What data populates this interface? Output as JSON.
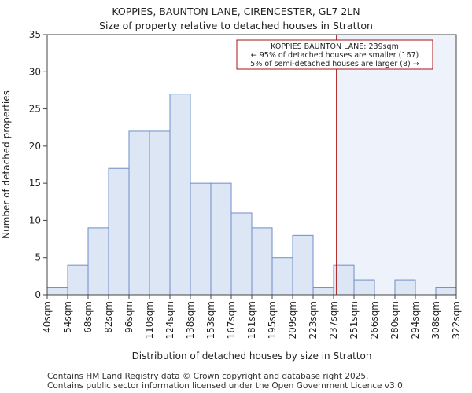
{
  "title_line1": "KOPPIES, BAUNTON LANE, CIRENCESTER, GL7 2LN",
  "title_line2": "Size of property relative to detached houses in Stratton",
  "footer_line1": "Contains HM Land Registry data © Crown copyright and database right 2025.",
  "footer_line2": "Contains public sector information licensed under the Open Government Licence v3.0.",
  "colors": {
    "bar_fill": "#dce6f5",
    "bar_stroke": "#6e8fc7",
    "highlight_fill": "#eef2fb",
    "marker": "#aa1111"
  },
  "chart_data": {
    "type": "bar",
    "title": "Size of property relative to detached houses in Stratton",
    "xlabel": "Distribution of detached houses by size in Stratton",
    "ylabel": "Number of detached properties",
    "ylim": [
      0,
      35
    ],
    "yticks": [
      0,
      5,
      10,
      15,
      20,
      25,
      30,
      35
    ],
    "grid": false,
    "bin_edges": [
      "40sqm",
      "54sqm",
      "68sqm",
      "82sqm",
      "96sqm",
      "110sqm",
      "124sqm",
      "138sqm",
      "153sqm",
      "167sqm",
      "181sqm",
      "195sqm",
      "209sqm",
      "223sqm",
      "237sqm",
      "251sqm",
      "266sqm",
      "280sqm",
      "294sqm",
      "308sqm",
      "322sqm"
    ],
    "values": [
      1,
      4,
      9,
      17,
      22,
      22,
      27,
      15,
      15,
      11,
      9,
      5,
      8,
      1,
      4,
      2,
      0,
      2,
      0,
      1
    ],
    "marker": {
      "value_sqm": 239,
      "position_bins": 14.14,
      "annotation": [
        "KOPPIES BAUNTON LANE: 239sqm",
        "← 95% of detached houses are smaller (167)",
        "5% of semi-detached houses are larger (8) →"
      ]
    }
  }
}
